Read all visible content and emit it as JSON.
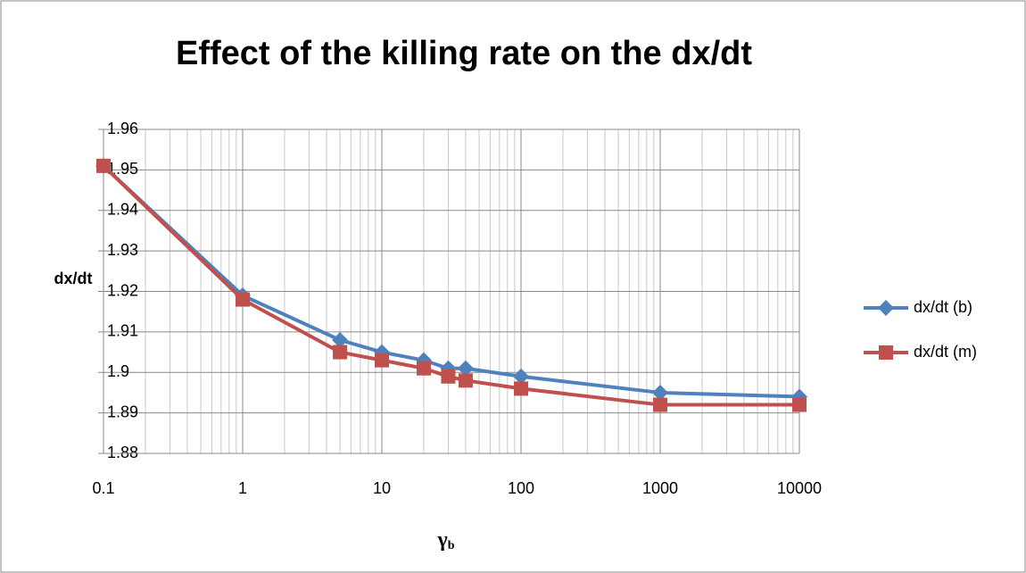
{
  "chart_data": {
    "type": "line",
    "title": "Effect of the killing rate on the dx/dt",
    "y_label": "dx/dt",
    "x_label": {
      "main": "γ",
      "sub": "b"
    },
    "x": [
      0.1,
      1,
      5,
      10,
      20,
      30,
      40,
      100,
      1000,
      10000
    ],
    "series": [
      {
        "name": "dx/dt (b)",
        "color": "#4f81bd",
        "marker": "diamond",
        "values": [
          1.951,
          1.919,
          1.908,
          1.905,
          1.903,
          1.901,
          1.901,
          1.899,
          1.895,
          1.894
        ]
      },
      {
        "name": "dx/dt (m)",
        "color": "#c0504d",
        "marker": "square",
        "values": [
          1.951,
          1.918,
          1.905,
          1.903,
          1.901,
          1.899,
          1.898,
          1.896,
          1.892,
          1.892
        ]
      }
    ],
    "xscale": "log",
    "xlim": [
      0.1,
      10000
    ],
    "xticks": [
      0.1,
      1,
      10,
      100,
      1000,
      10000
    ],
    "ylim": [
      1.88,
      1.96
    ],
    "yticks": [
      1.88,
      1.89,
      1.9,
      1.91,
      1.92,
      1.93,
      1.94,
      1.95,
      1.96
    ],
    "grid": true,
    "legend": "right"
  }
}
